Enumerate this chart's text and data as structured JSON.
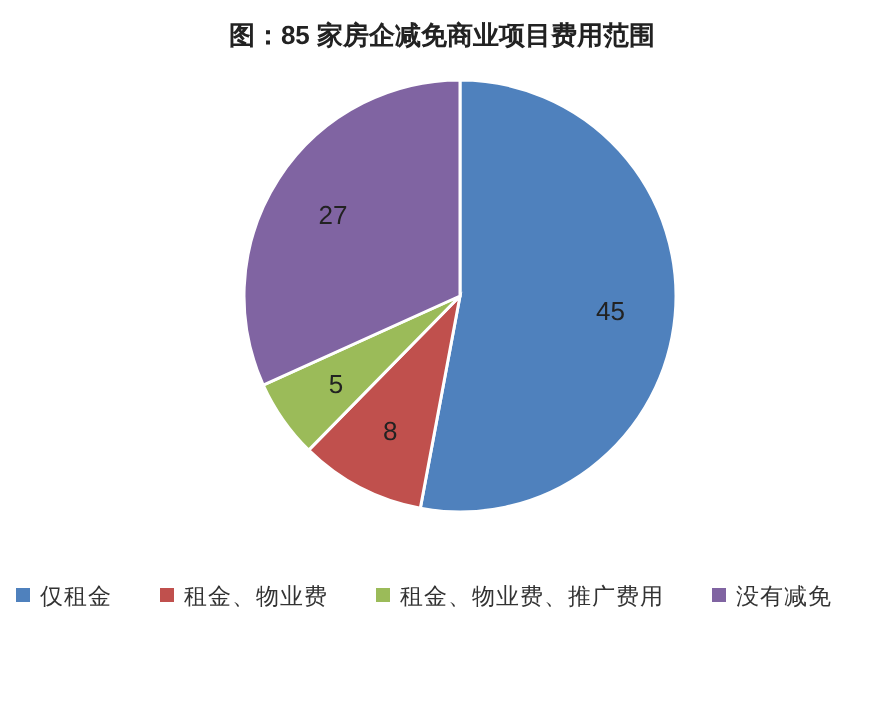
{
  "chart_data": {
    "type": "pie",
    "title": "图：85 家房企减免商业项目费用范围",
    "categories": [
      "仅租金",
      "租金、物业费",
      "租金、物业费、推广费用",
      "没有减免"
    ],
    "values": [
      45,
      8,
      5,
      27
    ],
    "colors": [
      "#4f81bd",
      "#c0504d",
      "#9bbb59",
      "#8064a2"
    ],
    "data_labels": true,
    "legend": "bottom"
  }
}
